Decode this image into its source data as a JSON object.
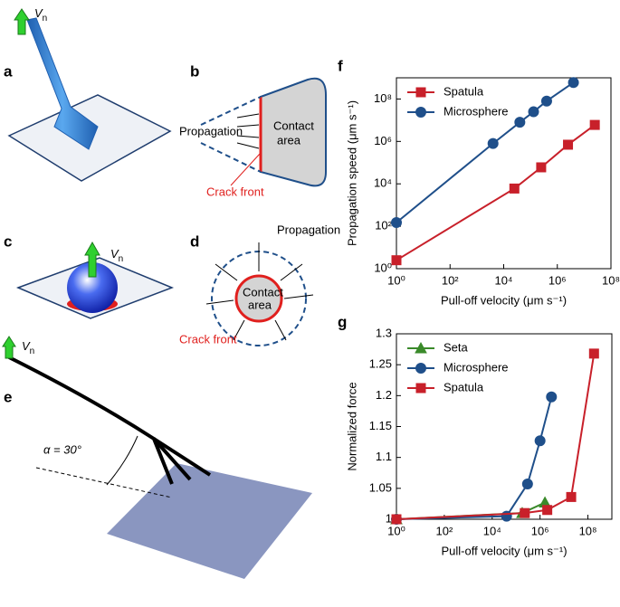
{
  "diagram": {
    "panels": [
      "a",
      "b",
      "c",
      "d",
      "e"
    ],
    "velocity_labels": [
      {
        "symbol": "V",
        "subscript": "n"
      },
      {
        "symbol": "V",
        "subscript": "n"
      },
      {
        "symbol": "V",
        "subscript": "n"
      }
    ],
    "b": {
      "propagation": "Propagation",
      "contact": [
        "Contact",
        "area"
      ],
      "crack": "Crack front"
    },
    "d": {
      "propagation": "Propagation",
      "contact": [
        "Contact",
        "area"
      ],
      "crack": "Crack front"
    },
    "e": {
      "angle": "α = 30°"
    }
  },
  "chart_data": [
    {
      "type": "line",
      "panel": "f",
      "log_x": true,
      "log_y": true,
      "xlabel": "Pull-off velocity (μm s⁻¹)",
      "ylabel": "Propagation speed (μm s⁻¹)",
      "xlim": [
        1,
        100000000
      ],
      "ylim": [
        1,
        1000000000
      ],
      "xticks": [
        {
          "value": 1,
          "label": "10⁰"
        },
        {
          "value": 100,
          "label": "10²"
        },
        {
          "value": 10000,
          "label": "10⁴"
        },
        {
          "value": 1000000,
          "label": "10⁶"
        },
        {
          "value": 100000000,
          "label": "10⁸"
        }
      ],
      "yticks": [
        {
          "value": 1,
          "label": "10⁰"
        },
        {
          "value": 100,
          "label": "10²"
        },
        {
          "value": 10000,
          "label": "10⁴"
        },
        {
          "value": 1000000,
          "label": "10⁶"
        },
        {
          "value": 100000000,
          "label": "10⁸"
        }
      ],
      "legend": "upper-left",
      "series": [
        {
          "name": "Spatula",
          "color": "#c8202a",
          "marker": "square",
          "x": [
            1,
            25000,
            250000,
            2500000,
            25000000
          ],
          "values": [
            2.5,
            6000,
            60000,
            700000,
            6000000
          ]
        },
        {
          "name": "Microsphere",
          "color": "#1f4f8a",
          "marker": "circle",
          "x": [
            1,
            4000,
            40000,
            130000,
            400000,
            4000000
          ],
          "values": [
            150,
            800000,
            8000000,
            25000000,
            80000000,
            600000000
          ]
        }
      ]
    },
    {
      "type": "line",
      "panel": "g",
      "log_x": true,
      "log_y": false,
      "xlabel": "Pull-off velocity (μm s⁻¹)",
      "ylabel": "Normalized force",
      "xlim": [
        1,
        1000000000
      ],
      "ylim": [
        1,
        1.3
      ],
      "xticks": [
        {
          "value": 1,
          "label": "10⁰"
        },
        {
          "value": 100,
          "label": "10²"
        },
        {
          "value": 10000,
          "label": "10⁴"
        },
        {
          "value": 1000000,
          "label": "10⁶"
        },
        {
          "value": 100000000,
          "label": "10⁸"
        }
      ],
      "yticks": [
        1,
        1.05,
        1.1,
        1.15,
        1.2,
        1.25,
        1.3
      ],
      "legend": "upper-left",
      "series": [
        {
          "name": "Seta",
          "color": "#3a8a2a",
          "marker": "triangle",
          "x": [
            1,
            180000,
            1600000
          ],
          "values": [
            1,
            1.01,
            1.027
          ]
        },
        {
          "name": "Microsphere",
          "color": "#1f4f8a",
          "marker": "circle",
          "x": [
            1,
            40000,
            300000,
            1000000,
            3000000
          ],
          "values": [
            1,
            1.005,
            1.057,
            1.127,
            1.198
          ]
        },
        {
          "name": "Spatula",
          "color": "#c8202a",
          "marker": "square",
          "x": [
            1,
            230000,
            2000000,
            20000000,
            180000000
          ],
          "values": [
            1,
            1.01,
            1.015,
            1.036,
            1.268
          ]
        }
      ]
    }
  ]
}
